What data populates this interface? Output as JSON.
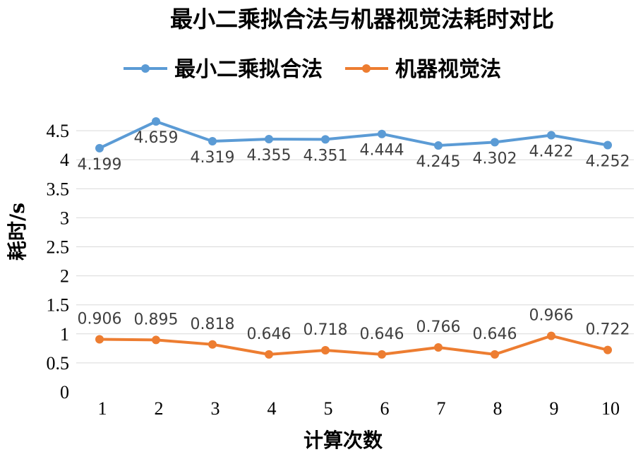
{
  "chart_data": {
    "type": "line",
    "title": "最小二乘拟合法与机器视觉法耗时对比",
    "xlabel": "计算次数",
    "ylabel": "耗时/s",
    "categories": [
      "1",
      "2",
      "3",
      "4",
      "5",
      "6",
      "7",
      "8",
      "9",
      "10"
    ],
    "ylim": [
      0,
      4.5
    ],
    "yticks": [
      "0",
      "0.5",
      "1",
      "1.5",
      "2",
      "2.5",
      "3",
      "3.5",
      "4",
      "4.5"
    ],
    "grid": true,
    "legend_position": "top",
    "series": [
      {
        "name": "最小二乘拟合法",
        "color": "#5b9bd5",
        "values": [
          4.199,
          4.659,
          4.319,
          4.355,
          4.351,
          4.444,
          4.245,
          4.302,
          4.422,
          4.252
        ],
        "labels": [
          "4.199",
          "4.659",
          "4.319",
          "4.355",
          "4.351",
          "4.444",
          "4.245",
          "4.302",
          "4.422",
          "4.252"
        ]
      },
      {
        "name": "机器视觉法",
        "color": "#ed7d31",
        "values": [
          0.906,
          0.895,
          0.818,
          0.646,
          0.718,
          0.646,
          0.766,
          0.646,
          0.966,
          0.722
        ],
        "labels": [
          "0.906",
          "0.895",
          "0.818",
          "0.646",
          "0.718",
          "0.646",
          "0.766",
          "0.646",
          "0.966",
          "0.722"
        ]
      }
    ]
  }
}
